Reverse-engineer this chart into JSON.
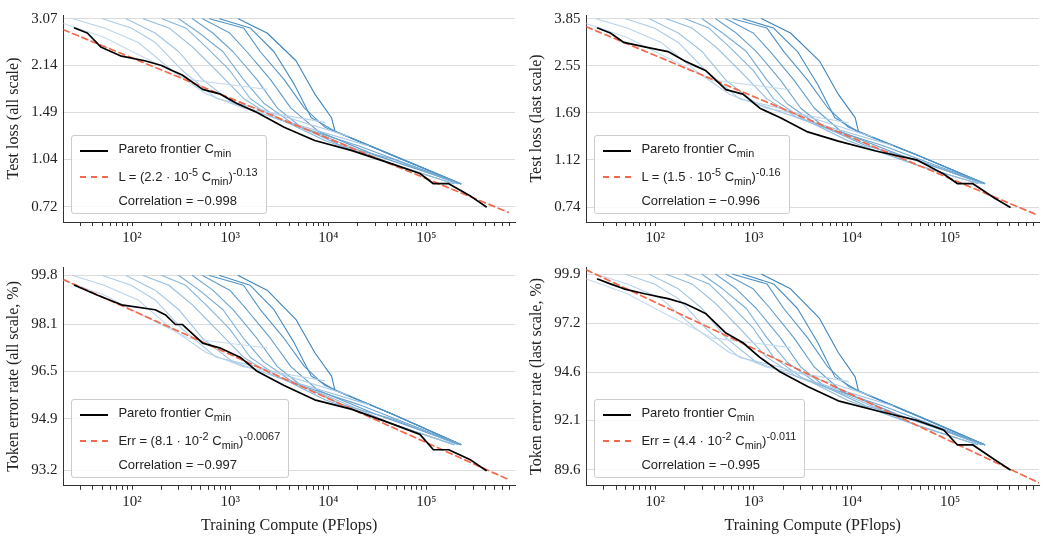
{
  "chart_data": [
    {
      "type": "line",
      "ylabel": "Test loss (all scale)",
      "log": "xy",
      "grid": "y",
      "legend": "bottom left",
      "xlim": [
        20,
        800000
      ],
      "xticks": [
        {
          "value": 30,
          "label": null
        },
        {
          "value": 40,
          "label": null
        },
        {
          "value": 50,
          "label": null
        },
        {
          "value": 60,
          "label": null
        },
        {
          "value": 70,
          "label": null
        },
        {
          "value": 80,
          "label": null
        },
        {
          "value": 90,
          "label": null
        },
        {
          "value": 100,
          "label": "10²"
        },
        {
          "value": 200,
          "label": null
        },
        {
          "value": 300,
          "label": null
        },
        {
          "value": 400,
          "label": null
        },
        {
          "value": 500,
          "label": null
        },
        {
          "value": 600,
          "label": null
        },
        {
          "value": 700,
          "label": null
        },
        {
          "value": 800,
          "label": null
        },
        {
          "value": 900,
          "label": null
        },
        {
          "value": 1000,
          "label": "10³"
        },
        {
          "value": 2000,
          "label": null
        },
        {
          "value": 3000,
          "label": null
        },
        {
          "value": 4000,
          "label": null
        },
        {
          "value": 5000,
          "label": null
        },
        {
          "value": 6000,
          "label": null
        },
        {
          "value": 7000,
          "label": null
        },
        {
          "value": 8000,
          "label": null
        },
        {
          "value": 9000,
          "label": null
        },
        {
          "value": 10000,
          "label": "10⁴"
        },
        {
          "value": 20000,
          "label": null
        },
        {
          "value": 30000,
          "label": null
        },
        {
          "value": 40000,
          "label": null
        },
        {
          "value": 50000,
          "label": null
        },
        {
          "value": 60000,
          "label": null
        },
        {
          "value": 70000,
          "label": null
        },
        {
          "value": 80000,
          "label": null
        },
        {
          "value": 90000,
          "label": null
        },
        {
          "value": 100000,
          "label": "10⁵"
        },
        {
          "value": 200000,
          "label": null
        },
        {
          "value": 300000,
          "label": null
        },
        {
          "value": 400000,
          "label": null
        },
        {
          "value": 500000,
          "label": null
        },
        {
          "value": 600000,
          "label": null
        },
        {
          "value": 700000,
          "label": null
        }
      ],
      "ylim": [
        0.64,
        3.16
      ],
      "yticks": [
        0.72,
        1.04,
        1.49,
        2.14,
        3.07
      ],
      "annotations": [
        "Correlation = −0.998"
      ],
      "series": [
        {
          "color": "#c6dbef",
          "x": [
            20,
            52,
            125,
            381,
            2380
          ],
          "values": [
            2.96,
            2.66,
            2.3,
            1.92,
            1.78
          ]
        },
        {
          "color": "#b9d3ea",
          "x": [
            25,
            52,
            115,
            256,
            568,
            1370,
            9240
          ],
          "values": [
            3.07,
            2.86,
            2.56,
            2.06,
            1.72,
            1.54,
            1.38
          ]
        },
        {
          "color": "#accce6",
          "x": [
            50,
            98,
            172,
            325,
            721,
            1880,
            16100
          ],
          "values": [
            3.07,
            2.86,
            2.56,
            2.06,
            1.66,
            1.54,
            1.24
          ]
        },
        {
          "color": "#9fc4e2",
          "x": [
            87,
            172,
            300,
            524,
            1070,
            2800,
            26000
          ],
          "values": [
            3.07,
            2.75,
            2.38,
            1.92,
            1.6,
            1.43,
            1.15
          ]
        },
        {
          "color": "#92bcdd",
          "x": [
            130,
            237,
            413,
            721,
            1370,
            2800,
            9240,
            45400,
            191000
          ],
          "values": [
            3.07,
            2.86,
            2.47,
            2.06,
            1.66,
            1.43,
            1.24,
            1.0,
            0.86
          ]
        },
        {
          "color": "#85b4d9",
          "x": [
            202,
            352,
            568,
            991,
            1600,
            3030,
            9240,
            45400,
            191000
          ],
          "values": [
            3.07,
            2.86,
            2.47,
            2.06,
            1.66,
            1.43,
            1.2,
            1.0,
            0.86
          ]
        },
        {
          "color": "#78acd4",
          "x": [
            300,
            484,
            846,
            1370,
            2200,
            4160,
            13800,
            45400,
            207000
          ],
          "values": [
            3.07,
            2.75,
            2.38,
            1.92,
            1.6,
            1.38,
            1.15,
            1.04,
            0.86
          ]
        },
        {
          "color": "#6ba4d0",
          "x": [
            413,
            666,
            1070,
            1880,
            3030,
            5290,
            20500,
            224000
          ],
          "values": [
            3.07,
            2.75,
            2.38,
            1.92,
            1.54,
            1.33,
            1.15,
            0.86
          ]
        },
        {
          "color": "#5e9ccb",
          "x": [
            524,
            991,
            1480,
            2580,
            4160,
            7870,
            30500,
            224000
          ],
          "values": [
            3.07,
            2.75,
            2.38,
            1.92,
            1.54,
            1.29,
            1.07,
            0.86
          ]
        },
        {
          "color": "#5194c7",
          "x": [
            615,
            1370,
            2030,
            3550,
            5720,
            9240,
            45400,
            224000
          ],
          "values": [
            3.07,
            2.86,
            2.38,
            1.92,
            1.54,
            1.33,
            1.07,
            0.86
          ]
        },
        {
          "color": "#448cc2",
          "x": [
            781,
            1600,
            2800,
            4510,
            6710,
            11700,
            45400,
            224000
          ],
          "values": [
            3.07,
            2.86,
            2.38,
            1.85,
            1.43,
            1.29,
            1.07,
            0.86
          ]
        },
        {
          "color": "#3a84be",
          "x": [
            1210,
            2380,
            4690,
            7270,
            10800,
            11700,
            45400,
            224000
          ],
          "values": [
            3.07,
            2.75,
            2.22,
            1.72,
            1.43,
            1.29,
            1.07,
            0.86
          ]
        },
        {
          "name": "Pareto frontier C$_{min}$",
          "color": "#000000",
          "x": [
            26,
            35,
            48,
            78,
            135,
            200,
            256,
            325,
            524,
            781,
            1160,
            1880,
            3550,
            7270,
            17500,
            45400,
            85900,
            118000,
            169000,
            284000,
            406000
          ],
          "values": [
            2.86,
            2.75,
            2.47,
            2.3,
            2.22,
            2.14,
            2.06,
            1.99,
            1.78,
            1.72,
            1.6,
            1.49,
            1.33,
            1.2,
            1.11,
            1.0,
            0.93,
            0.86,
            0.86,
            0.78,
            0.72
          ]
        },
        {
          "name": "L = (2.2 · 10$^{-5}$ C$_{min}$)$^{-0.13}$",
          "color": "#f4694b",
          "line_style": "dashed",
          "x": [
            20,
            682000
          ],
          "values": [
            2.82,
            0.69
          ]
        }
      ]
    },
    {
      "type": "line",
      "ylabel": "Test loss (last scale)",
      "log": "xy",
      "grid": "y",
      "legend": "bottom left",
      "xlim": [
        20,
        800000
      ],
      "xticks": [
        {
          "value": 30,
          "label": null
        },
        {
          "value": 40,
          "label": null
        },
        {
          "value": 50,
          "label": null
        },
        {
          "value": 60,
          "label": null
        },
        {
          "value": 70,
          "label": null
        },
        {
          "value": 80,
          "label": null
        },
        {
          "value": 90,
          "label": null
        },
        {
          "value": 100,
          "label": "10²"
        },
        {
          "value": 200,
          "label": null
        },
        {
          "value": 300,
          "label": null
        },
        {
          "value": 400,
          "label": null
        },
        {
          "value": 500,
          "label": null
        },
        {
          "value": 600,
          "label": null
        },
        {
          "value": 700,
          "label": null
        },
        {
          "value": 800,
          "label": null
        },
        {
          "value": 900,
          "label": null
        },
        {
          "value": 1000,
          "label": "10³"
        },
        {
          "value": 2000,
          "label": null
        },
        {
          "value": 3000,
          "label": null
        },
        {
          "value": 4000,
          "label": null
        },
        {
          "value": 5000,
          "label": null
        },
        {
          "value": 6000,
          "label": null
        },
        {
          "value": 7000,
          "label": null
        },
        {
          "value": 8000,
          "label": null
        },
        {
          "value": 9000,
          "label": null
        },
        {
          "value": 10000,
          "label": "10⁴"
        },
        {
          "value": 20000,
          "label": null
        },
        {
          "value": 30000,
          "label": null
        },
        {
          "value": 40000,
          "label": null
        },
        {
          "value": 50000,
          "label": null
        },
        {
          "value": 60000,
          "label": null
        },
        {
          "value": 70000,
          "label": null
        },
        {
          "value": 80000,
          "label": null
        },
        {
          "value": 90000,
          "label": null
        },
        {
          "value": 100000,
          "label": "10⁵"
        },
        {
          "value": 200000,
          "label": null
        },
        {
          "value": 300000,
          "label": null
        },
        {
          "value": 400000,
          "label": null
        },
        {
          "value": 500000,
          "label": null
        },
        {
          "value": 600000,
          "label": null
        },
        {
          "value": 700000,
          "label": null
        }
      ],
      "ylim": [
        0.65,
        3.98
      ],
      "yticks": [
        0.74,
        1.12,
        1.69,
        2.55,
        3.85
      ],
      "annotations": [
        "Correlation = −0.996"
      ],
      "series": [
        {
          "color": "#c6dbef",
          "x": [
            20,
            52,
            125,
            381,
            2380
          ],
          "values": [
            3.69,
            3.27,
            2.77,
            2.25,
            2.07
          ]
        },
        {
          "color": "#b9d3ea",
          "x": [
            25,
            52,
            115,
            256,
            568,
            1370,
            9240
          ],
          "values": [
            3.85,
            3.55,
            3.13,
            2.45,
            1.99,
            1.76,
            1.55
          ]
        },
        {
          "color": "#accce6",
          "x": [
            50,
            98,
            172,
            325,
            721,
            1880,
            16100
          ],
          "values": [
            3.85,
            3.55,
            3.13,
            2.45,
            1.91,
            1.76,
            1.37
          ]
        },
        {
          "color": "#9fc4e2",
          "x": [
            87,
            172,
            300,
            524,
            1070,
            2800,
            26000
          ],
          "values": [
            3.85,
            3.4,
            2.89,
            2.25,
            1.83,
            1.62,
            1.27
          ]
        },
        {
          "color": "#92bcdd",
          "x": [
            130,
            237,
            413,
            721,
            1370,
            2800,
            9240,
            45400,
            191000
          ],
          "values": [
            3.85,
            3.55,
            3.01,
            2.45,
            1.91,
            1.62,
            1.37,
            1.07,
            0.91
          ]
        },
        {
          "color": "#85b4d9",
          "x": [
            202,
            352,
            568,
            991,
            1600,
            3030,
            9240,
            45400,
            191000
          ],
          "values": [
            3.85,
            3.55,
            3.01,
            2.45,
            1.91,
            1.62,
            1.32,
            1.07,
            0.91
          ]
        },
        {
          "color": "#78acd4",
          "x": [
            300,
            484,
            846,
            1370,
            2200,
            4160,
            13800,
            45400,
            207000
          ],
          "values": [
            3.85,
            3.4,
            2.89,
            2.25,
            1.83,
            1.55,
            1.27,
            1.12,
            0.91
          ]
        },
        {
          "color": "#6ba4d0",
          "x": [
            413,
            666,
            1070,
            1880,
            3030,
            5290,
            20500,
            224000
          ],
          "values": [
            3.85,
            3.4,
            2.89,
            2.25,
            1.76,
            1.49,
            1.27,
            0.91
          ]
        },
        {
          "color": "#5e9ccb",
          "x": [
            524,
            991,
            1480,
            2580,
            4160,
            7870,
            30500,
            224000
          ],
          "values": [
            3.85,
            3.4,
            2.89,
            2.25,
            1.76,
            1.43,
            1.17,
            0.91
          ]
        },
        {
          "color": "#5194c7",
          "x": [
            615,
            1370,
            2030,
            3550,
            5720,
            9240,
            45400,
            224000
          ],
          "values": [
            3.85,
            3.55,
            2.89,
            2.25,
            1.76,
            1.49,
            1.17,
            0.91
          ]
        },
        {
          "color": "#448cc2",
          "x": [
            781,
            1600,
            2800,
            4510,
            6710,
            11700,
            45400,
            224000
          ],
          "values": [
            3.85,
            3.55,
            2.89,
            2.16,
            1.62,
            1.43,
            1.17,
            0.91
          ]
        },
        {
          "color": "#3a84be",
          "x": [
            1210,
            2380,
            4690,
            7270,
            10800,
            11700,
            45400,
            224000
          ],
          "values": [
            3.85,
            3.4,
            2.66,
            1.99,
            1.62,
            1.43,
            1.17,
            0.91
          ]
        },
        {
          "name": "Pareto frontier C$_{min}$",
          "color": "#000000",
          "x": [
            26,
            35,
            48,
            78,
            135,
            200,
            256,
            325,
            524,
            781,
            1160,
            1880,
            3550,
            7270,
            17500,
            45400,
            85900,
            118000,
            169000,
            284000,
            406000
          ],
          "values": [
            3.55,
            3.4,
            3.13,
            3.01,
            2.89,
            2.66,
            2.55,
            2.45,
            2.07,
            1.99,
            1.76,
            1.62,
            1.43,
            1.32,
            1.21,
            1.12,
            0.99,
            0.91,
            0.91,
            0.8,
            0.74
          ]
        },
        {
          "name": "L = (1.5 · 10$^{-5}$ C$_{min}$)$^{-0.16}$",
          "color": "#f4694b",
          "line_style": "dashed",
          "x": [
            20,
            780000
          ],
          "values": [
            3.59,
            0.69
          ]
        }
      ]
    },
    {
      "type": "line",
      "ylabel": "Token error rate (all scale, %)",
      "xlabel": "Training Compute (PFlops)",
      "log": "xy",
      "grid": "y",
      "legend": "bottom left",
      "xlim": [
        20,
        800000
      ],
      "xticks": [
        {
          "value": 30,
          "label": null
        },
        {
          "value": 40,
          "label": null
        },
        {
          "value": 50,
          "label": null
        },
        {
          "value": 60,
          "label": null
        },
        {
          "value": 70,
          "label": null
        },
        {
          "value": 80,
          "label": null
        },
        {
          "value": 90,
          "label": null
        },
        {
          "value": 100,
          "label": "10²"
        },
        {
          "value": 200,
          "label": null
        },
        {
          "value": 300,
          "label": null
        },
        {
          "value": 400,
          "label": null
        },
        {
          "value": 500,
          "label": null
        },
        {
          "value": 600,
          "label": null
        },
        {
          "value": 700,
          "label": null
        },
        {
          "value": 800,
          "label": null
        },
        {
          "value": 900,
          "label": null
        },
        {
          "value": 1000,
          "label": "10³"
        },
        {
          "value": 2000,
          "label": null
        },
        {
          "value": 3000,
          "label": null
        },
        {
          "value": 4000,
          "label": null
        },
        {
          "value": 5000,
          "label": null
        },
        {
          "value": 6000,
          "label": null
        },
        {
          "value": 7000,
          "label": null
        },
        {
          "value": 8000,
          "label": null
        },
        {
          "value": 9000,
          "label": null
        },
        {
          "value": 10000,
          "label": "10⁴"
        },
        {
          "value": 20000,
          "label": null
        },
        {
          "value": 30000,
          "label": null
        },
        {
          "value": 40000,
          "label": null
        },
        {
          "value": 50000,
          "label": null
        },
        {
          "value": 60000,
          "label": null
        },
        {
          "value": 70000,
          "label": null
        },
        {
          "value": 80000,
          "label": null
        },
        {
          "value": 90000,
          "label": null
        },
        {
          "value": 100000,
          "label": "10⁵"
        },
        {
          "value": 200000,
          "label": null
        },
        {
          "value": 300000,
          "label": null
        },
        {
          "value": 400000,
          "label": null
        },
        {
          "value": 500000,
          "label": null
        },
        {
          "value": 600000,
          "label": null
        },
        {
          "value": 700000,
          "label": null
        }
      ],
      "ylim": [
        92.7,
        100.1
      ],
      "yticks": [
        93.2,
        94.9,
        96.5,
        98.1,
        99.8
      ],
      "annotations": [
        "Correlation = −0.997"
      ],
      "series": [
        {
          "color": "#c6dbef",
          "x": [
            20,
            52,
            125,
            381,
            2380
          ],
          "values": [
            99.63,
            99.12,
            98.44,
            97.62,
            97.3
          ]
        },
        {
          "color": "#b9d3ea",
          "x": [
            25,
            52,
            115,
            256,
            568,
            1370,
            9240
          ],
          "values": [
            99.8,
            99.46,
            98.95,
            97.94,
            97.14,
            96.66,
            96.18
          ]
        },
        {
          "color": "#accce6",
          "x": [
            50,
            98,
            172,
            325,
            721,
            1880,
            16100
          ],
          "values": [
            99.8,
            99.46,
            98.95,
            97.94,
            96.98,
            96.66,
            95.7
          ]
        },
        {
          "color": "#9fc4e2",
          "x": [
            87,
            172,
            300,
            524,
            1070,
            2800,
            26000
          ],
          "values": [
            99.8,
            99.29,
            98.61,
            97.62,
            96.82,
            96.34,
            95.38
          ]
        },
        {
          "color": "#92bcdd",
          "x": [
            130,
            237,
            413,
            721,
            1370,
            2800,
            9240,
            45400,
            191000
          ],
          "values": [
            99.8,
            99.46,
            98.78,
            97.94,
            96.98,
            96.34,
            95.7,
            94.73,
            94.05
          ]
        },
        {
          "color": "#85b4d9",
          "x": [
            202,
            352,
            568,
            991,
            1600,
            3030,
            9240,
            45400,
            191000
          ],
          "values": [
            99.8,
            99.46,
            98.78,
            97.94,
            96.98,
            96.34,
            95.54,
            94.73,
            94.05
          ]
        },
        {
          "color": "#78acd4",
          "x": [
            300,
            484,
            846,
            1370,
            2200,
            4160,
            13800,
            45400,
            207000
          ],
          "values": [
            99.8,
            99.29,
            98.61,
            97.62,
            96.82,
            96.18,
            95.38,
            94.9,
            94.05
          ]
        },
        {
          "color": "#6ba4d0",
          "x": [
            413,
            666,
            1070,
            1880,
            3030,
            5290,
            20500,
            224000
          ],
          "values": [
            99.8,
            99.29,
            98.61,
            97.62,
            96.66,
            96.02,
            95.38,
            94.05
          ]
        },
        {
          "color": "#5e9ccb",
          "x": [
            524,
            991,
            1480,
            2580,
            4160,
            7870,
            30500,
            224000
          ],
          "values": [
            99.8,
            99.29,
            98.61,
            97.62,
            96.66,
            95.86,
            95.06,
            94.05
          ]
        },
        {
          "color": "#5194c7",
          "x": [
            615,
            1370,
            2030,
            3550,
            5720,
            9240,
            45400,
            224000
          ],
          "values": [
            99.8,
            99.46,
            98.61,
            97.62,
            96.66,
            96.02,
            95.06,
            94.05
          ]
        },
        {
          "color": "#448cc2",
          "x": [
            781,
            1600,
            2800,
            4510,
            6710,
            11700,
            45400,
            224000
          ],
          "values": [
            99.8,
            99.46,
            98.61,
            97.46,
            96.34,
            95.86,
            95.06,
            94.05
          ]
        },
        {
          "color": "#3a84be",
          "x": [
            1210,
            2380,
            4690,
            7270,
            10800,
            11700,
            45400,
            224000
          ],
          "values": [
            99.8,
            99.29,
            98.27,
            97.14,
            96.34,
            95.86,
            95.06,
            94.05
          ]
        },
        {
          "name": "Pareto frontier C$_{min}$",
          "color": "#000000",
          "x": [
            26,
            44,
            78,
            172,
            218,
            277,
            325,
            524,
            781,
            1260,
            1880,
            3550,
            7270,
            17500,
            45400,
            85900,
            118000,
            169000,
            284000,
            406000
          ],
          "values": [
            99.46,
            99.12,
            98.78,
            98.61,
            98.44,
            98.1,
            98.1,
            97.46,
            97.3,
            96.98,
            96.5,
            96.02,
            95.54,
            95.22,
            94.73,
            94.39,
            93.88,
            93.88,
            93.54,
            93.2
          ]
        },
        {
          "name": "Err = (8.1 · 10$^{-2}$ C$_{min}$)$^{-0.0067}$",
          "color": "#f4694b",
          "line_style": "dashed",
          "x": [
            20,
            682000
          ],
          "values": [
            99.66,
            92.91
          ]
        }
      ]
    },
    {
      "type": "line",
      "ylabel": "Token error rate (last scale, %)",
      "xlabel": "Training Compute (PFlops)",
      "log": "xy",
      "grid": "y",
      "legend": "bottom left",
      "xlim": [
        20,
        800000
      ],
      "xticks": [
        {
          "value": 30,
          "label": null
        },
        {
          "value": 40,
          "label": null
        },
        {
          "value": 50,
          "label": null
        },
        {
          "value": 60,
          "label": null
        },
        {
          "value": 70,
          "label": null
        },
        {
          "value": 80,
          "label": null
        },
        {
          "value": 90,
          "label": null
        },
        {
          "value": 100,
          "label": "10²"
        },
        {
          "value": 200,
          "label": null
        },
        {
          "value": 300,
          "label": null
        },
        {
          "value": 400,
          "label": null
        },
        {
          "value": 500,
          "label": null
        },
        {
          "value": 600,
          "label": null
        },
        {
          "value": 700,
          "label": null
        },
        {
          "value": 800,
          "label": null
        },
        {
          "value": 900,
          "label": null
        },
        {
          "value": 1000,
          "label": "10³"
        },
        {
          "value": 2000,
          "label": null
        },
        {
          "value": 3000,
          "label": null
        },
        {
          "value": 4000,
          "label": null
        },
        {
          "value": 5000,
          "label": null
        },
        {
          "value": 6000,
          "label": null
        },
        {
          "value": 7000,
          "label": null
        },
        {
          "value": 8000,
          "label": null
        },
        {
          "value": 9000,
          "label": null
        },
        {
          "value": 10000,
          "label": "10⁴"
        },
        {
          "value": 20000,
          "label": null
        },
        {
          "value": 30000,
          "label": null
        },
        {
          "value": 40000,
          "label": null
        },
        {
          "value": 50000,
          "label": null
        },
        {
          "value": 60000,
          "label": null
        },
        {
          "value": 70000,
          "label": null
        },
        {
          "value": 80000,
          "label": null
        },
        {
          "value": 90000,
          "label": null
        },
        {
          "value": 100000,
          "label": "10⁵"
        },
        {
          "value": 200000,
          "label": null
        },
        {
          "value": 300000,
          "label": null
        },
        {
          "value": 400000,
          "label": null
        },
        {
          "value": 500000,
          "label": null
        },
        {
          "value": 600000,
          "label": null
        },
        {
          "value": 700000,
          "label": null
        }
      ],
      "ylim": [
        88.8,
        100.3
      ],
      "yticks": [
        89.6,
        92.1,
        94.6,
        97.2,
        99.9
      ],
      "annotations": [
        "Correlation = −0.995"
      ],
      "series": [
        {
          "color": "#c6dbef",
          "x": [
            20,
            52,
            125,
            381,
            2380
          ],
          "values": [
            99.63,
            98.82,
            97.74,
            96.42,
            95.9
          ]
        },
        {
          "color": "#b9d3ea",
          "x": [
            25,
            52,
            115,
            256,
            568,
            1370,
            9240
          ],
          "values": [
            99.9,
            99.36,
            98.55,
            96.94,
            95.64,
            94.86,
            94.1
          ]
        },
        {
          "color": "#accce6",
          "x": [
            50,
            98,
            172,
            325,
            721,
            1880,
            16100
          ],
          "values": [
            99.9,
            99.36,
            98.55,
            96.94,
            95.38,
            94.86,
            93.35
          ]
        },
        {
          "color": "#9fc4e2",
          "x": [
            87,
            172,
            300,
            524,
            1070,
            2800,
            26000
          ],
          "values": [
            99.9,
            99.09,
            98.01,
            96.42,
            95.12,
            94.35,
            92.85
          ]
        },
        {
          "color": "#92bcdd",
          "x": [
            130,
            237,
            413,
            721,
            1370,
            2800,
            9240,
            45400,
            191000
          ],
          "values": [
            99.9,
            99.36,
            98.28,
            96.94,
            95.38,
            94.35,
            93.35,
            91.85,
            90.85
          ]
        },
        {
          "color": "#85b4d9",
          "x": [
            202,
            352,
            568,
            991,
            1600,
            3030,
            9240,
            45400,
            191000
          ],
          "values": [
            99.9,
            99.36,
            98.28,
            96.94,
            95.38,
            94.35,
            93.1,
            91.85,
            90.85
          ]
        },
        {
          "color": "#78acd4",
          "x": [
            300,
            484,
            846,
            1370,
            2200,
            4160,
            13800,
            45400,
            207000
          ],
          "values": [
            99.9,
            99.09,
            98.01,
            96.42,
            95.12,
            94.1,
            92.85,
            92.1,
            90.85
          ]
        },
        {
          "color": "#6ba4d0",
          "x": [
            413,
            666,
            1070,
            1880,
            3030,
            5290,
            20500,
            224000
          ],
          "values": [
            99.9,
            99.09,
            98.01,
            96.42,
            94.86,
            93.85,
            92.85,
            90.85
          ]
        },
        {
          "color": "#5e9ccb",
          "x": [
            524,
            991,
            1480,
            2580,
            4160,
            7870,
            30500,
            224000
          ],
          "values": [
            99.9,
            99.09,
            98.01,
            96.42,
            94.86,
            93.6,
            92.35,
            90.85
          ]
        },
        {
          "color": "#5194c7",
          "x": [
            615,
            1370,
            2030,
            3550,
            5720,
            9240,
            45400,
            224000
          ],
          "values": [
            99.9,
            99.36,
            98.01,
            96.42,
            94.86,
            93.85,
            92.35,
            90.85
          ]
        },
        {
          "color": "#448cc2",
          "x": [
            781,
            1600,
            2800,
            4510,
            6710,
            11700,
            45400,
            224000
          ],
          "values": [
            99.9,
            99.36,
            98.01,
            96.16,
            94.35,
            93.6,
            92.35,
            90.85
          ]
        },
        {
          "color": "#3a84be",
          "x": [
            1210,
            2380,
            4690,
            7270,
            10800,
            11700,
            45400,
            224000
          ],
          "values": [
            99.9,
            99.09,
            97.47,
            95.64,
            94.35,
            93.6,
            92.35,
            90.85
          ]
        },
        {
          "name": "Pareto frontier C$_{min}$",
          "color": "#000000",
          "x": [
            26,
            35,
            48,
            78,
            135,
            200,
            256,
            325,
            524,
            781,
            1160,
            1880,
            3550,
            7270,
            17500,
            45400,
            85900,
            118000,
            169000,
            284000,
            406000
          ],
          "values": [
            99.63,
            99.36,
            99.09,
            98.82,
            98.55,
            98.28,
            98.01,
            97.74,
            96.68,
            96.16,
            95.38,
            94.6,
            93.85,
            93.1,
            92.6,
            92.1,
            91.6,
            90.85,
            90.85,
            90.1,
            89.6
          ]
        },
        {
          "name": "Err = (4.4 · 10$^{-2}$ C$_{min}$)$^{-0.011}$",
          "color": "#f4694b",
          "line_style": "dashed",
          "x": [
            20,
            800000
          ],
          "values": [
            100.14,
            88.95
          ]
        }
      ]
    }
  ]
}
